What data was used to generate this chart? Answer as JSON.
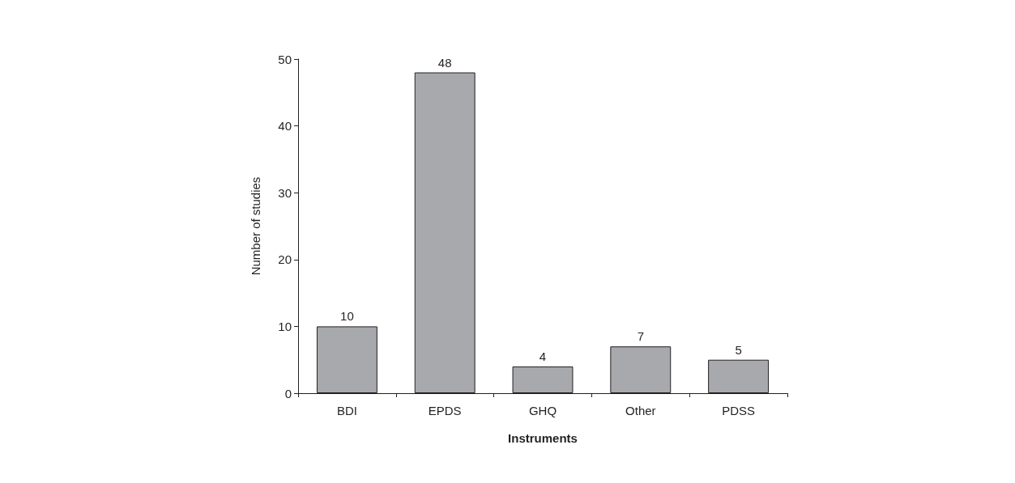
{
  "chart_data": {
    "type": "bar",
    "xlabel": "Instruments",
    "ylabel": "Number of studies",
    "categories": [
      "BDI",
      "EPDS",
      "GHQ",
      "Other",
      "PDSS"
    ],
    "values": [
      10,
      48,
      4,
      7,
      5
    ],
    "color": "#a7a9ac",
    "ylim": [
      0,
      50
    ],
    "yticks": [
      0,
      10,
      20,
      30,
      40,
      50
    ],
    "grid": false,
    "data_labels": true
  }
}
